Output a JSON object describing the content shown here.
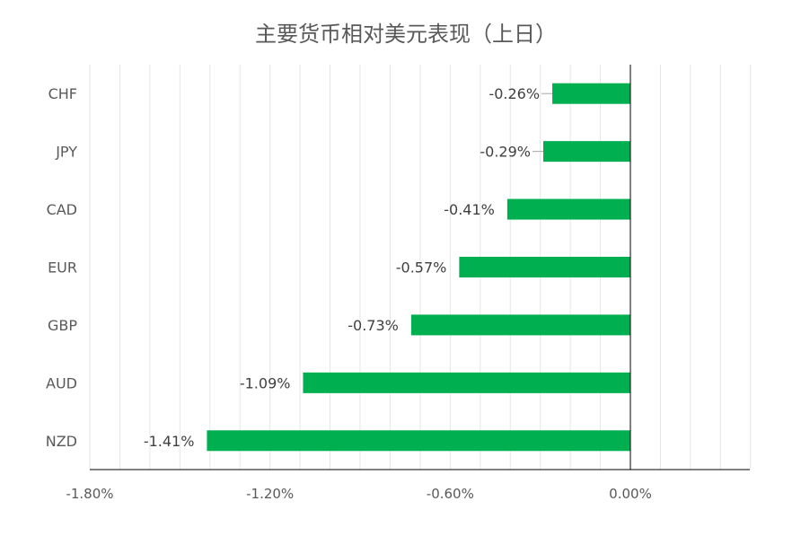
{
  "chart_data": {
    "type": "bar",
    "orientation": "horizontal",
    "title": "主要货币相对美元表现（上日）",
    "categories": [
      "CHF",
      "JPY",
      "CAD",
      "EUR",
      "GBP",
      "AUD",
      "NZD"
    ],
    "values": [
      -0.26,
      -0.29,
      -0.41,
      -0.57,
      -0.73,
      -1.09,
      -1.41
    ],
    "value_labels": [
      "-0.26%",
      "-0.29%",
      "-0.41%",
      "-0.57%",
      "-0.73%",
      "-1.09%",
      "-1.41%"
    ],
    "xlim": [
      -1.8,
      0.4
    ],
    "xticks": [
      -1.8,
      -1.2,
      -0.6,
      0.0
    ],
    "xtick_labels": [
      "-1.80%",
      "-1.20%",
      "-0.60%",
      "0.00%"
    ],
    "xlabel": "",
    "ylabel": "",
    "grid": true,
    "legend": "none",
    "colors": {
      "bar": "#00B050",
      "grid": "#E6E6E6",
      "axis": "#000000",
      "text": "#595959"
    }
  }
}
